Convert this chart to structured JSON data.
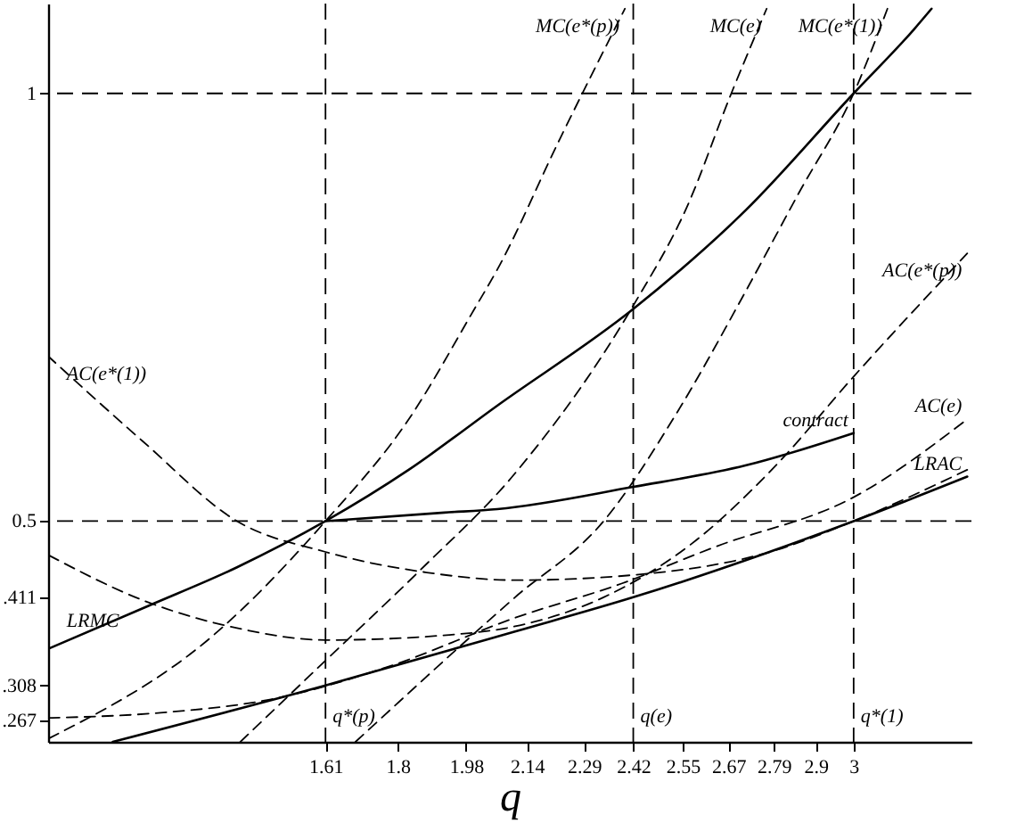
{
  "chart_data": {
    "type": "line",
    "xlabel": "q",
    "xlim": [
      0.88,
      3.31
    ],
    "ylim": [
      0.242,
      1.105
    ],
    "xticks": [
      1.61,
      1.8,
      1.98,
      2.14,
      2.29,
      2.42,
      2.55,
      2.67,
      2.79,
      2.9,
      3
    ],
    "yticks": [
      {
        "value": 0.267,
        "label": ".267"
      },
      {
        "value": 0.308,
        "label": ".308"
      },
      {
        "value": 0.411,
        "label": ".411"
      },
      0.5,
      1
    ],
    "grid": false,
    "marker": "none",
    "series": [
      {
        "name": "LRMC",
        "color": "#000000",
        "line_style": "solid",
        "x": [
          3.205,
          3.159,
          3.0,
          2.715,
          2.42,
          2.062,
          1.829,
          1.61,
          1.377,
          1.144,
          0.882
        ],
        "values": [
          1.099,
          1.075,
          1.0,
          0.863,
          0.748,
          0.635,
          0.56,
          0.5,
          0.446,
          0.401,
          0.351
        ]
      },
      {
        "name": "contract",
        "color": "#000000",
        "line_style": "solid",
        "x": [
          1.61,
          1.923,
          2.062,
          2.42,
          2.715,
          3.0
        ],
        "values": [
          0.5,
          0.51,
          0.514,
          0.54,
          0.565,
          0.603
        ]
      },
      {
        "name": "LRAC",
        "color": "#000000",
        "line_style": "solid",
        "x": [
          1.05,
          1.61,
          2.109,
          2.42,
          3.0,
          3.299
        ],
        "values": [
          0.242,
          0.308,
          0.371,
          0.411,
          0.5,
          0.552
        ]
      },
      {
        "name": "AC(e*(1))",
        "color": "#000000",
        "line_style": "dashed",
        "x": [
          3.299,
          3.0,
          2.795,
          2.42,
          2.109,
          1.876,
          1.61,
          1.377,
          1.13,
          0.882
        ],
        "values": [
          0.56,
          0.5,
          0.466,
          0.437,
          0.431,
          0.44,
          0.464,
          0.5,
          0.593,
          0.692
        ]
      },
      {
        "name": "AC(e*(p))",
        "color": "#000000",
        "line_style": "dashed",
        "x": [
          0.882,
          1.144,
          1.377,
          1.61,
          1.936,
          2.109,
          2.342,
          2.575,
          2.795,
          3.0,
          3.299
        ],
        "values": [
          0.46,
          0.405,
          0.375,
          0.361,
          0.367,
          0.377,
          0.411,
          0.474,
          0.565,
          0.669,
          0.813
        ]
      },
      {
        "name": "AC(e)",
        "color": "#000000",
        "line_style": "dashed",
        "x": [
          0.882,
          1.176,
          1.47,
          1.783,
          2.109,
          2.389,
          2.636,
          3.0,
          3.299
        ],
        "values": [
          0.27,
          0.276,
          0.292,
          0.331,
          0.387,
          0.427,
          0.47,
          0.528,
          0.619
        ]
      },
      {
        "name": "MC(e*(p))",
        "color": "#000000",
        "line_style": "dashed",
        "x": [
          0.882,
          1.316,
          1.61,
          1.829,
          2.002,
          2.062,
          2.226,
          2.398
        ],
        "values": [
          0.246,
          0.367,
          0.5,
          0.619,
          0.748,
          0.794,
          0.946,
          1.099
        ]
      },
      {
        "name": "MC(e)",
        "color": "#000000",
        "line_style": "dashed",
        "x": [
          1.386,
          1.61,
          1.853,
          2.109,
          2.42,
          2.561,
          2.678,
          2.771
        ],
        "values": [
          0.242,
          0.337,
          0.44,
          0.556,
          0.752,
          0.867,
          1.0,
          1.099
        ]
      },
      {
        "name": "MC(e*(1))",
        "color": "#000000",
        "line_style": "dashed",
        "x": [
          1.689,
          2.109,
          2.342,
          2.538,
          2.715,
          2.855,
          3.0,
          3.089
        ],
        "values": [
          0.242,
          0.411,
          0.5,
          0.629,
          0.768,
          0.883,
          1.0,
          1.099
        ]
      }
    ],
    "ref_lines": [
      {
        "axis": "x",
        "value": 1.61,
        "line_style": "dashed",
        "color": "#000000",
        "label": "q*(p)"
      },
      {
        "axis": "x",
        "value": 2.42,
        "line_style": "dashed",
        "color": "#000000",
        "label": "q(e)"
      },
      {
        "axis": "x",
        "value": 3,
        "line_style": "dashed",
        "color": "#000000",
        "label": "q*(1)"
      },
      {
        "axis": "y",
        "value": 0.5,
        "line_style": "dashed",
        "color": "#000000"
      },
      {
        "axis": "y",
        "value": 1,
        "line_style": "dashed",
        "color": "#000000"
      }
    ]
  }
}
